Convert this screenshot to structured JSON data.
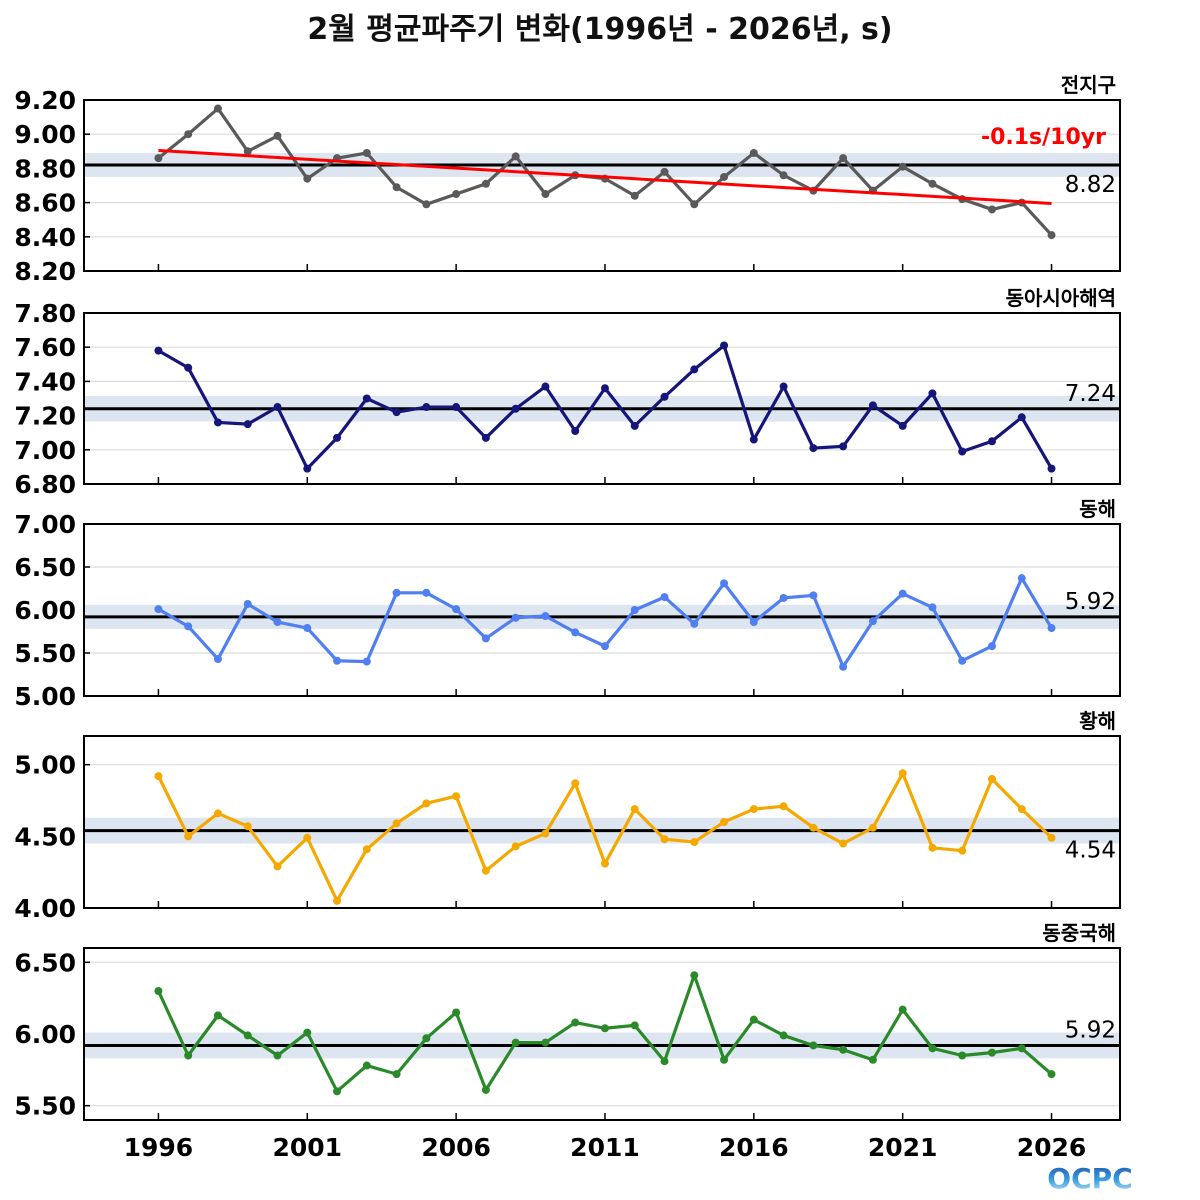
{
  "chart_data": {
    "type": "line",
    "title": "2월 평균파주기 변화(1996년 - 2026년, s)",
    "x": [
      1996,
      1997,
      1998,
      1999,
      2000,
      2001,
      2002,
      2003,
      2004,
      2005,
      2006,
      2007,
      2008,
      2009,
      2010,
      2011,
      2012,
      2013,
      2014,
      2015,
      2016,
      2017,
      2018,
      2019,
      2020,
      2021,
      2022,
      2023,
      2024,
      2025,
      2026
    ],
    "xticks": [
      1996,
      2001,
      2006,
      2011,
      2016,
      2021,
      2026
    ],
    "xlim": [
      1993.5,
      2028.3
    ],
    "grid": true,
    "panels": [
      {
        "name": "전지구",
        "color": "#5a5a5a",
        "ylim": [
          8.2,
          9.2
        ],
        "yticks": [
          "8.20",
          "8.40",
          "8.60",
          "8.80",
          "9.00",
          "9.20"
        ],
        "mean": 8.82,
        "mean_label": "8.82",
        "band": [
          8.75,
          8.89
        ],
        "values": [
          8.86,
          9.0,
          9.15,
          8.9,
          8.99,
          8.74,
          8.86,
          8.89,
          8.69,
          8.59,
          8.65,
          8.71,
          8.87,
          8.65,
          8.76,
          8.74,
          8.64,
          8.78,
          8.59,
          8.75,
          8.89,
          8.76,
          8.67,
          8.86,
          8.67,
          8.81,
          8.71,
          8.62,
          8.56,
          8.6,
          8.41
        ],
        "trend": {
          "label": "-0.1s/10yr",
          "color": "#ff0000",
          "start": [
            1996,
            8.905
          ],
          "end": [
            2026,
            8.595
          ]
        }
      },
      {
        "name": "동아시아해역",
        "color": "#15157a",
        "ylim": [
          6.8,
          7.8
        ],
        "yticks": [
          "6.80",
          "7.00",
          "7.20",
          "7.40",
          "7.60",
          "7.80"
        ],
        "mean": 7.24,
        "mean_label": "7.24",
        "band": [
          7.165,
          7.315
        ],
        "values": [
          7.58,
          7.48,
          7.16,
          7.15,
          7.25,
          6.89,
          7.07,
          7.3,
          7.22,
          7.25,
          7.25,
          7.07,
          7.24,
          7.37,
          7.11,
          7.36,
          7.14,
          7.31,
          7.47,
          7.61,
          7.06,
          7.37,
          7.01,
          7.02,
          7.26,
          7.14,
          7.33,
          6.99,
          7.05,
          7.19,
          6.89
        ]
      },
      {
        "name": "동해",
        "color": "#4f7ff0",
        "ylim": [
          5.0,
          7.0
        ],
        "yticks": [
          "5.00",
          "5.50",
          "6.00",
          "6.50",
          "7.00"
        ],
        "mean": 5.92,
        "mean_label": "5.92",
        "band": [
          5.78,
          6.06
        ],
        "values": [
          6.01,
          5.81,
          5.43,
          6.07,
          5.86,
          5.79,
          5.41,
          5.4,
          6.2,
          6.2,
          6.01,
          5.67,
          5.91,
          5.93,
          5.74,
          5.58,
          6.0,
          6.15,
          5.84,
          6.31,
          5.86,
          6.14,
          6.17,
          5.34,
          5.87,
          6.19,
          6.03,
          5.41,
          5.58,
          6.37,
          5.79
        ]
      },
      {
        "name": "황해",
        "color": "#f5a800",
        "ylim": [
          4.0,
          5.2
        ],
        "yticks": [
          "4.00",
          "4.50",
          "5.00"
        ],
        "mean": 4.54,
        "mean_label": "4.54",
        "band": [
          4.45,
          4.63
        ],
        "values": [
          4.92,
          4.5,
          4.66,
          4.57,
          4.29,
          4.49,
          4.05,
          4.41,
          4.59,
          4.73,
          4.78,
          4.26,
          4.43,
          4.52,
          4.87,
          4.31,
          4.69,
          4.48,
          4.46,
          4.6,
          4.69,
          4.71,
          4.56,
          4.45,
          4.56,
          4.94,
          4.42,
          4.4,
          4.9,
          4.69,
          4.49
        ]
      },
      {
        "name": "동중국해",
        "color": "#2a8a2a",
        "ylim": [
          5.4,
          6.6
        ],
        "yticks": [
          "5.50",
          "6.00",
          "6.50"
        ],
        "mean": 5.92,
        "mean_label": "5.92",
        "band": [
          5.83,
          6.01
        ],
        "values": [
          6.3,
          5.85,
          6.13,
          5.99,
          5.85,
          6.01,
          5.6,
          5.78,
          5.72,
          5.97,
          6.15,
          5.61,
          5.94,
          5.94,
          6.08,
          6.04,
          6.06,
          5.81,
          6.41,
          5.82,
          6.1,
          5.99,
          5.92,
          5.89,
          5.82,
          6.17,
          5.9,
          5.85,
          5.87,
          5.9,
          5.72
        ]
      }
    ],
    "band_color": "#dde6f0",
    "mean_line_color": "#000000"
  },
  "logo": {
    "text": "OCPC"
  }
}
